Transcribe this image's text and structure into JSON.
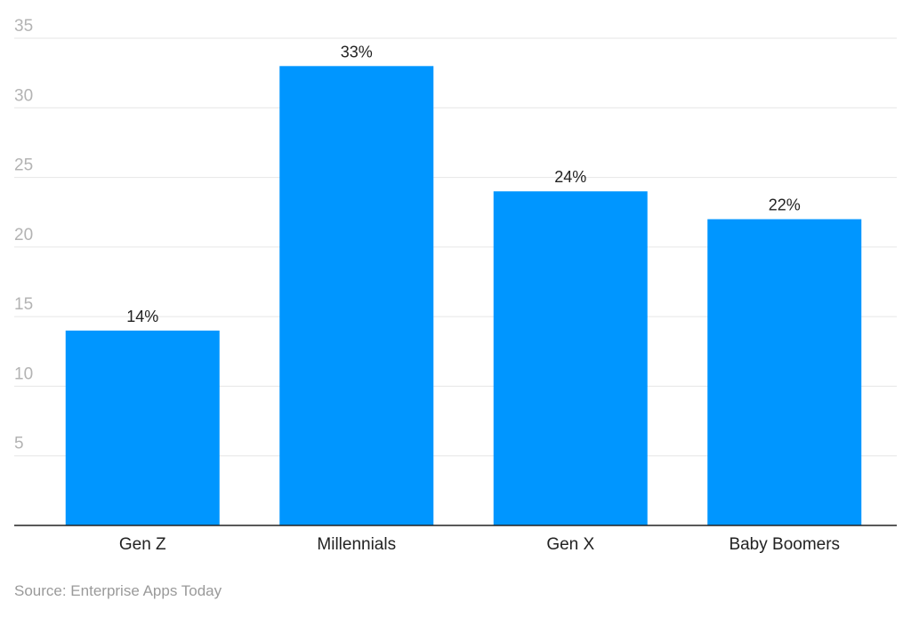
{
  "chart_data": {
    "type": "bar",
    "categories": [
      "Gen Z",
      "Millennials",
      "Gen X",
      "Baby Boomers"
    ],
    "values": [
      14,
      33,
      24,
      22
    ],
    "data_labels": [
      "14%",
      "33%",
      "24%",
      "22%"
    ],
    "y_ticks": [
      5,
      10,
      15,
      20,
      25,
      30,
      35
    ],
    "ylim": [
      0,
      35
    ],
    "grid": true,
    "legend": "none",
    "bar_color": "#0096ff",
    "grid_color": "#e6e6e6",
    "axis_color": "#222222"
  },
  "source": "Source: Enterprise Apps Today"
}
